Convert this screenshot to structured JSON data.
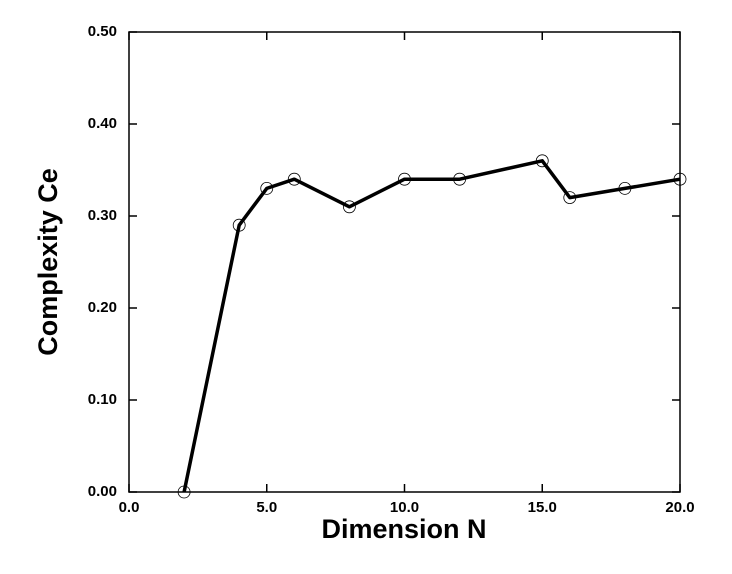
{
  "chart_data": {
    "type": "line",
    "x_label": "Dimension N",
    "y_label": "Complexity Ce",
    "x": [
      2,
      4,
      5,
      6,
      8,
      10,
      12,
      15,
      16,
      18,
      20
    ],
    "series": [
      {
        "name": "Ce",
        "color": "#000000",
        "values": [
          0.0,
          0.29,
          0.33,
          0.34,
          0.31,
          0.34,
          0.34,
          0.36,
          0.32,
          0.33,
          0.34
        ]
      }
    ],
    "xlim": [
      0,
      20
    ],
    "xticks": [
      {
        "value": 0,
        "label": "0.0"
      },
      {
        "value": 5,
        "label": "5.0"
      },
      {
        "value": 10,
        "label": "10.0"
      },
      {
        "value": 15,
        "label": "15.0"
      },
      {
        "value": 20,
        "label": "20.0"
      }
    ],
    "ylim": [
      0,
      0.5
    ],
    "yticks": [
      {
        "value": 0,
        "label": "0.00"
      },
      {
        "value": 0.1,
        "label": "0.10"
      },
      {
        "value": 0.2,
        "label": "0.20"
      },
      {
        "value": 0.3,
        "label": "0.30"
      },
      {
        "value": 0.4,
        "label": "0.40"
      },
      {
        "value": 0.5,
        "label": "0.50"
      }
    ],
    "markers": "open-circle",
    "grid": false
  }
}
